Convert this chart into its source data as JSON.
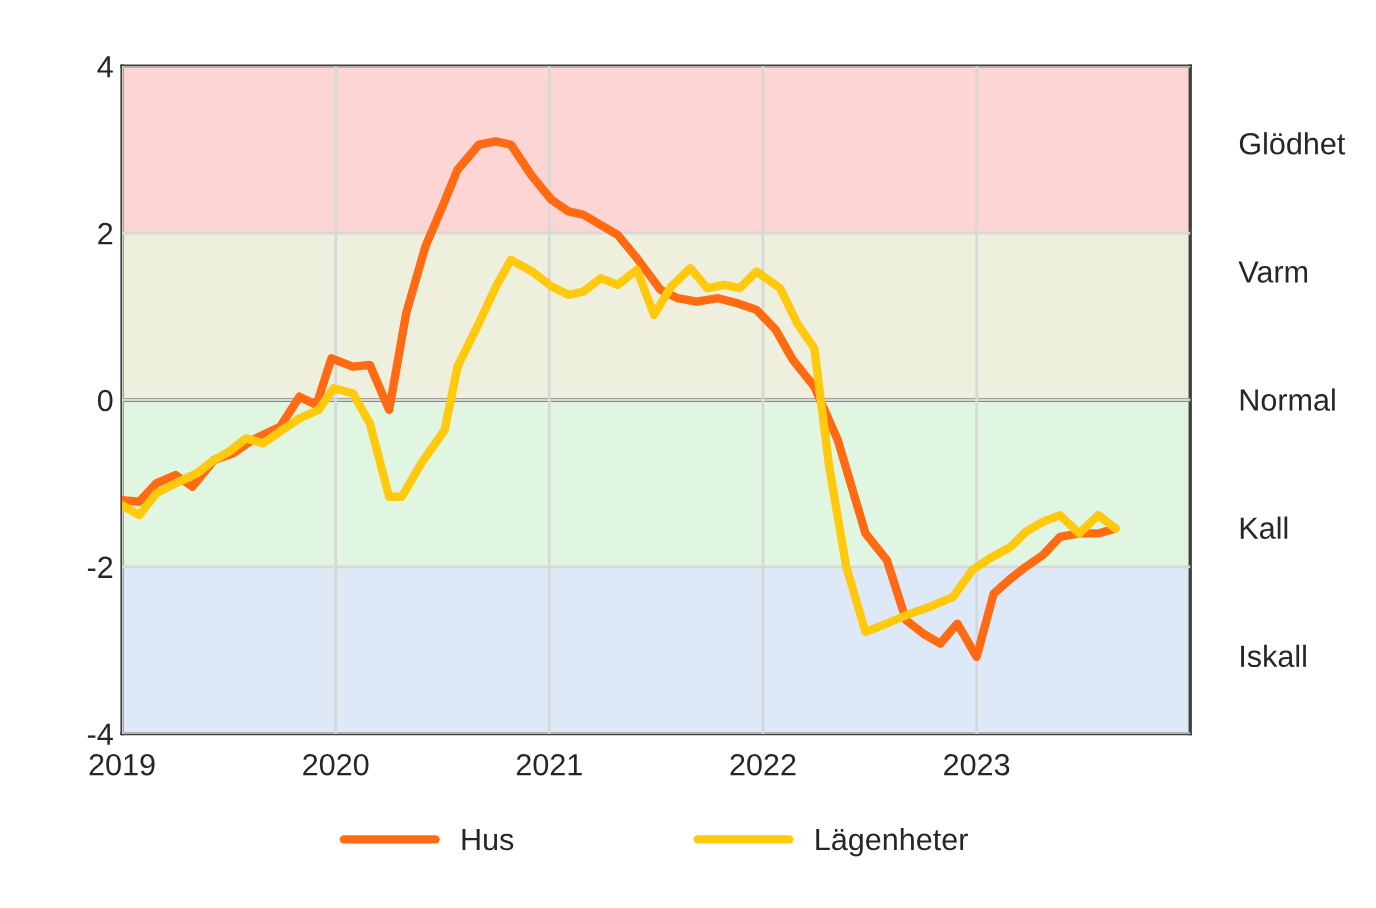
{
  "chart_data": {
    "type": "line",
    "xlim": [
      2019,
      2024
    ],
    "xticks": [
      2019,
      2020,
      2021,
      2022,
      2023
    ],
    "ylim": [
      -4,
      4
    ],
    "yticks": [
      -4,
      -2,
      0,
      2,
      4
    ],
    "annotations": [
      "Glödhet",
      "Varm",
      "Normal",
      "Kall",
      "Iskall"
    ],
    "grid": true,
    "legend": "bottom",
    "line_style": "solid",
    "marker": "none",
    "ref_lines": [
      {
        "axis": "y",
        "value": 0,
        "color": "#404040"
      }
    ],
    "bands": [
      {
        "axis": "y",
        "from": 2,
        "to": 4,
        "color": "#fdd6d3"
      },
      {
        "axis": "y",
        "from": 0,
        "to": 2,
        "color": "#eef0dd"
      },
      {
        "axis": "y",
        "from": -2,
        "to": 0,
        "color": "#e0f6e0"
      },
      {
        "axis": "y",
        "from": -4,
        "to": -2,
        "color": "#dde9f6"
      }
    ],
    "series": [
      {
        "name": "Hus",
        "color": "#ff6a13",
        "x": [
          2019.0,
          2019.08,
          2019.16,
          2019.25,
          2019.33,
          2019.43,
          2019.52,
          2019.61,
          2019.74,
          2019.83,
          2019.91,
          2019.98,
          2020.08,
          2020.16,
          2020.25,
          2020.33,
          2020.42,
          2020.5,
          2020.57,
          2020.67,
          2020.75,
          2020.82,
          2020.92,
          2021.01,
          2021.09,
          2021.16,
          2021.32,
          2021.41,
          2021.52,
          2021.6,
          2021.69,
          2021.79,
          2021.88,
          2021.97,
          2022.06,
          2022.14,
          2022.24,
          2022.35,
          2022.48,
          2022.58,
          2022.67,
          2022.75,
          2022.83,
          2022.91,
          2023.0,
          2023.08,
          2023.16,
          2023.23,
          2023.31,
          2023.39,
          2023.48,
          2023.57,
          2023.65
        ],
        "values": [
          -1.2,
          -1.22,
          -1.0,
          -0.9,
          -1.04,
          -0.72,
          -0.64,
          -0.48,
          -0.32,
          0.04,
          -0.06,
          0.5,
          0.4,
          0.42,
          -0.12,
          1.04,
          1.84,
          2.32,
          2.76,
          3.06,
          3.1,
          3.06,
          2.68,
          2.4,
          2.26,
          2.22,
          1.98,
          1.7,
          1.32,
          1.22,
          1.18,
          1.22,
          1.16,
          1.08,
          0.84,
          0.48,
          0.16,
          -0.48,
          -1.6,
          -1.92,
          -2.64,
          -2.8,
          -2.92,
          -2.68,
          -3.08,
          -2.32,
          -2.14,
          -2.0,
          -1.86,
          -1.64,
          -1.6,
          -1.6,
          -1.54
        ]
      },
      {
        "name": "Lägenheter",
        "color": "#ffc90e",
        "x": [
          2019.0,
          2019.08,
          2019.16,
          2019.25,
          2019.35,
          2019.43,
          2019.5,
          2019.58,
          2019.66,
          2019.75,
          2019.83,
          2019.92,
          2019.99,
          2020.08,
          2020.16,
          2020.25,
          2020.31,
          2020.4,
          2020.51,
          2020.57,
          2020.67,
          2020.75,
          2020.82,
          2020.92,
          2021.01,
          2021.09,
          2021.16,
          2021.24,
          2021.32,
          2021.41,
          2021.49,
          2021.57,
          2021.66,
          2021.74,
          2021.82,
          2021.89,
          2021.97,
          2022.08,
          2022.16,
          2022.24,
          2022.31,
          2022.39,
          2022.48,
          2022.58,
          2022.67,
          2022.78,
          2022.89,
          2022.98,
          2023.06,
          2023.16,
          2023.23,
          2023.31,
          2023.39,
          2023.48,
          2023.57,
          2023.65
        ],
        "values": [
          -1.26,
          -1.38,
          -1.12,
          -1.0,
          -0.88,
          -0.72,
          -0.62,
          -0.46,
          -0.52,
          -0.36,
          -0.22,
          -0.12,
          0.14,
          0.08,
          -0.28,
          -1.16,
          -1.16,
          -0.76,
          -0.36,
          0.4,
          0.92,
          1.36,
          1.68,
          1.54,
          1.36,
          1.26,
          1.3,
          1.46,
          1.38,
          1.56,
          1.02,
          1.36,
          1.58,
          1.34,
          1.38,
          1.34,
          1.54,
          1.34,
          0.92,
          0.62,
          -0.8,
          -2.0,
          -2.78,
          -2.68,
          -2.58,
          -2.48,
          -2.36,
          -2.04,
          -1.9,
          -1.76,
          -1.58,
          -1.46,
          -1.38,
          -1.6,
          -1.38,
          -1.54
        ]
      }
    ]
  }
}
